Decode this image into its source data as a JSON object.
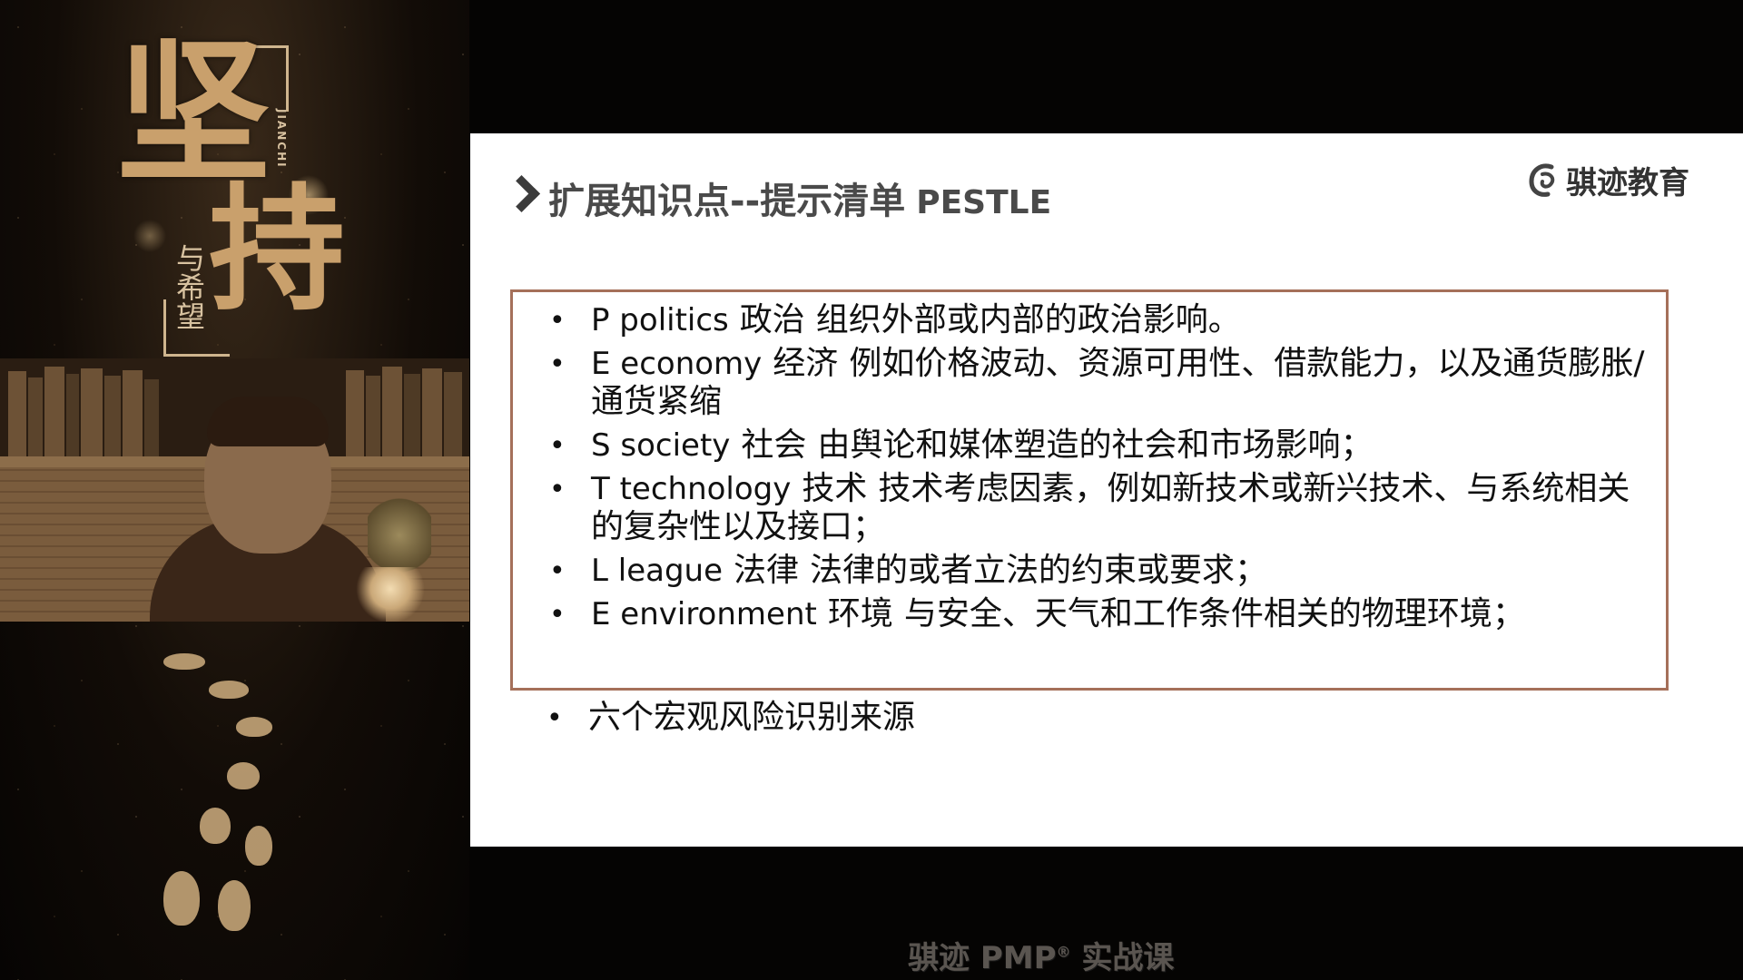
{
  "poster": {
    "title_char_1": "坚",
    "title_char_2": "持",
    "subtitle": "与希望",
    "pinyin": "JIANCHI"
  },
  "slide": {
    "title_zh": "扩展知识点--提示清单",
    "title_en": "PESTLE",
    "brand_name": "骐迹教育",
    "pestle_items": [
      {
        "en": "P politics",
        "zh": "政治",
        "desc": "组织外部或内部的政治影响。"
      },
      {
        "en": "E economy",
        "zh": "经济",
        "desc": "例如价格波动、资源可用性、借款能力，以及通货膨胀/通货紧缩"
      },
      {
        "en": "S society",
        "zh": "社会",
        "desc": "由舆论和媒体塑造的社会和市场影响；"
      },
      {
        "en": "T technology",
        "zh": "技术",
        "desc": "技术考虑因素，例如新技术或新兴技术、与系统相关的复杂性以及接口；"
      },
      {
        "en": "L league",
        "zh": "法律",
        "desc": "法律的或者立法的约束或要求；"
      },
      {
        "en": "E environment",
        "zh": "环境",
        "desc": "与安全、天气和工作条件相关的物理环境；"
      }
    ],
    "extra_bullet": "六个宏观风险识别来源"
  },
  "watermark": {
    "prefix": "骐迹 PMP",
    "registered": "®",
    "suffix": "实战课"
  },
  "colors": {
    "box_border": "#a5705a",
    "title_text": "#4a4a4a",
    "poster_gold": "#c9a06c"
  }
}
